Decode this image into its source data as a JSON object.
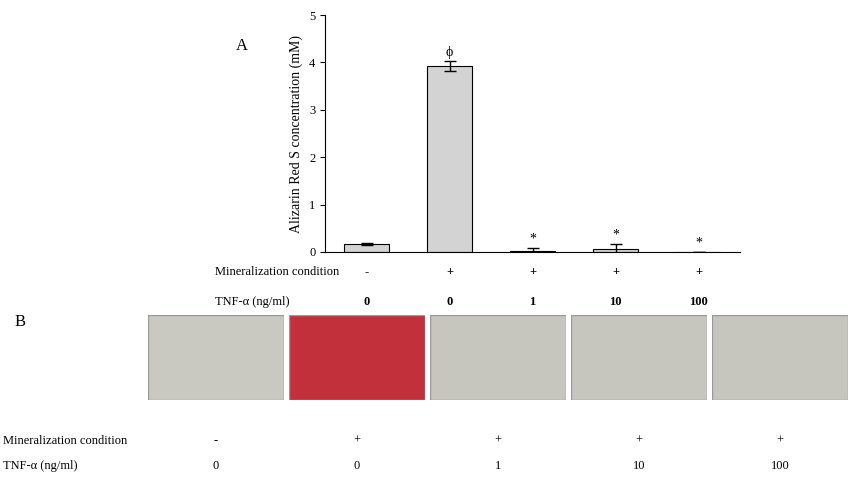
{
  "chart_data": {
    "type": "bar",
    "panel_label": "A",
    "y_label": "Alizarin Red S concentration (mM)",
    "category_row_labels": [
      "Mineralization condition",
      "TNF-α (ng/ml)"
    ],
    "categories": [
      [
        "-",
        "0"
      ],
      [
        "+",
        "0"
      ],
      [
        "+",
        "1"
      ],
      [
        "+",
        "10"
      ],
      [
        "+",
        "100"
      ]
    ],
    "values": [
      0.17,
      3.92,
      0.03,
      0.07,
      0.0
    ],
    "errors": [
      0.02,
      0.1,
      0.05,
      0.1,
      0.0
    ],
    "annotations": [
      {
        "index": 1,
        "text": "ϕ"
      },
      {
        "index": 2,
        "text": "*"
      },
      {
        "index": 3,
        "text": "*"
      },
      {
        "index": 4,
        "text": "*"
      }
    ],
    "color": "#d3d3d3",
    "ylim": [
      0,
      5
    ],
    "yticks": [
      0,
      1,
      2,
      3,
      4,
      5
    ],
    "grid": false
  },
  "image_panel": {
    "panel_label": "B",
    "row_labels": [
      "Mineralization condition",
      "TNF-α (ng/ml)"
    ],
    "columns": [
      [
        "-",
        "0"
      ],
      [
        "+",
        "0"
      ],
      [
        "+",
        "1"
      ],
      [
        "+",
        "10"
      ],
      [
        "+",
        "100"
      ]
    ],
    "colors": [
      "#c9c9c2",
      "#c2303c",
      "#c6c6bf",
      "#c6c6bf",
      "#c6c6bf"
    ]
  }
}
